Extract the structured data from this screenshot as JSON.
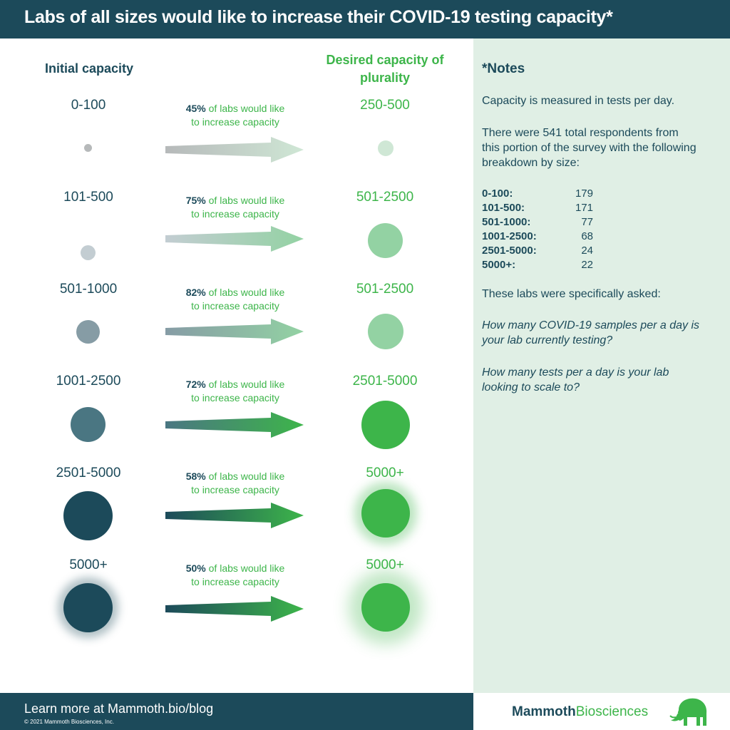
{
  "header": {
    "title": "Labs of all sizes would like to increase their COVID-19 testing capacity*"
  },
  "columns": {
    "initial": "Initial capacity",
    "desired": "Desired capacity of plurality"
  },
  "pct_suffix_line1": "of labs would like",
  "pct_suffix_line2": "to increase capacity",
  "rows": [
    {
      "initial": "0-100",
      "pct": "45%",
      "desired": "250-500",
      "init_color": "#b6b9ba",
      "des_color": "#cfe7d5"
    },
    {
      "initial": "101-500",
      "pct": "75%",
      "desired": "501-2500",
      "init_color": "#c3cdd2",
      "des_color": "#93d2a3"
    },
    {
      "initial": "501-1000",
      "pct": "82%",
      "desired": "501-2500",
      "init_color": "#869ca5",
      "des_color": "#93d2a3"
    },
    {
      "initial": "1001-2500",
      "pct": "72%",
      "desired": "2501-5000",
      "init_color": "#4a7682",
      "des_color": "#3db54a"
    },
    {
      "initial": "2501-5000",
      "pct": "58%",
      "desired": "5000+",
      "init_color": "#1c4a5a",
      "des_color": "#3db54a"
    },
    {
      "initial": "5000+",
      "pct": "50%",
      "desired": "5000+",
      "init_color": "#1c4a5a",
      "des_color": "#3db54a"
    }
  ],
  "notes": {
    "title": "*Notes",
    "capacity": "Capacity is measured in tests per day.",
    "respondents": "There were 541 total respondents from this portion of the survey with the following breakdown by size:",
    "breakdown": [
      {
        "size": "0-100:",
        "count": "179"
      },
      {
        "size": "101-500:",
        "count": "171"
      },
      {
        "size": "501-1000:",
        "count": "77"
      },
      {
        "size": "1001-2500:",
        "count": "68"
      },
      {
        "size": "2501-5000:",
        "count": "24"
      },
      {
        "size": "5000+:",
        "count": "22"
      }
    ],
    "asked": "These labs were specifically asked:",
    "q1": "How many COVID-19 samples per a day is your lab currently testing?",
    "q2": "How many tests per a day is your lab looking to scale to?"
  },
  "footer": {
    "learn_more": "Learn more at Mammoth.bio/blog",
    "copyright": "© 2021 Mammoth Biosciences, Inc.",
    "brand_bold": "Mammoth",
    "brand_rest": "Biosciences"
  },
  "colors": {
    "navy": "#1c4a5a",
    "green": "#3db54a",
    "notes_bg": "#e0efe5"
  }
}
